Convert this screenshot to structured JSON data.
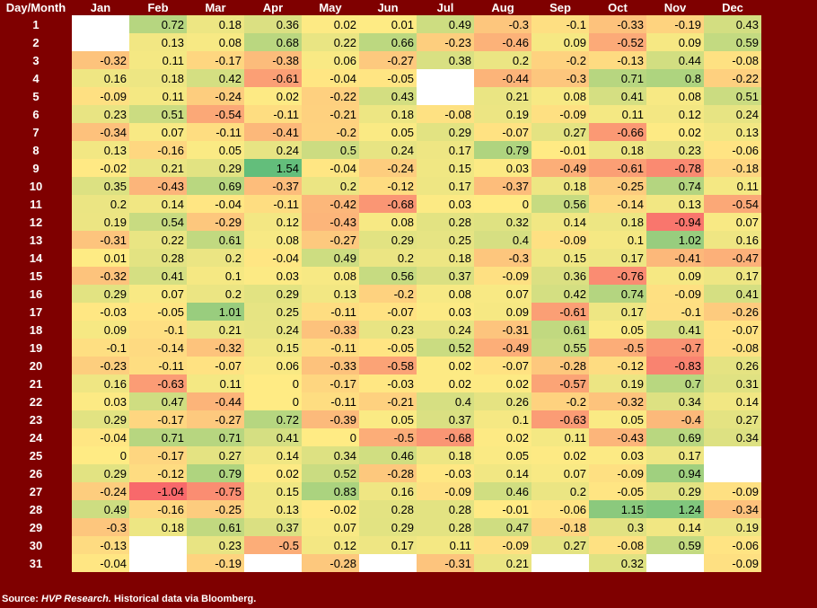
{
  "chart_data": {
    "type": "heatmap",
    "corner_label": "Day/Month",
    "columns": [
      "Jan",
      "Feb",
      "Mar",
      "Apr",
      "May",
      "Jun",
      "Jul",
      "Aug",
      "Sep",
      "Oct",
      "Nov",
      "Dec"
    ],
    "rows": [
      "1",
      "2",
      "3",
      "4",
      "5",
      "6",
      "7",
      "8",
      "9",
      "10",
      "11",
      "12",
      "13",
      "14",
      "15",
      "16",
      "17",
      "18",
      "19",
      "20",
      "21",
      "22",
      "23",
      "24",
      "25",
      "26",
      "27",
      "28",
      "29",
      "30",
      "31"
    ],
    "values": [
      [
        null,
        0.72,
        0.18,
        0.36,
        0.02,
        0.01,
        0.49,
        -0.3,
        -0.1,
        -0.33,
        -0.19,
        0.43
      ],
      [
        null,
        0.13,
        0.08,
        0.68,
        0.22,
        0.66,
        -0.23,
        -0.46,
        0.09,
        -0.52,
        0.09,
        0.59
      ],
      [
        -0.32,
        0.11,
        -0.17,
        -0.38,
        0.06,
        -0.27,
        0.38,
        0.2,
        -0.2,
        -0.13,
        0.44,
        -0.08
      ],
      [
        0.16,
        0.18,
        0.42,
        -0.61,
        -0.04,
        -0.05,
        null,
        -0.44,
        -0.3,
        0.71,
        0.8,
        -0.22
      ],
      [
        -0.09,
        0.11,
        -0.24,
        0.02,
        -0.22,
        0.43,
        null,
        0.21,
        0.08,
        0.41,
        0.08,
        0.51
      ],
      [
        0.23,
        0.51,
        -0.54,
        -0.11,
        -0.21,
        0.18,
        -0.08,
        0.19,
        -0.09,
        0.11,
        0.12,
        0.24
      ],
      [
        -0.34,
        0.07,
        -0.11,
        -0.41,
        -0.2,
        0.05,
        0.29,
        -0.07,
        0.27,
        -0.66,
        0.02,
        0.13
      ],
      [
        0.13,
        -0.16,
        0.05,
        0.24,
        0.5,
        0.24,
        0.17,
        0.79,
        -0.01,
        0.18,
        0.23,
        -0.06
      ],
      [
        -0.02,
        0.21,
        0.29,
        1.54,
        -0.04,
        -0.24,
        0.15,
        0.03,
        -0.49,
        -0.61,
        -0.78,
        -0.18
      ],
      [
        0.35,
        -0.43,
        0.69,
        -0.37,
        0.2,
        -0.12,
        0.17,
        -0.37,
        0.18,
        -0.25,
        0.74,
        0.11
      ],
      [
        0.2,
        0.14,
        -0.04,
        -0.11,
        -0.42,
        -0.68,
        0.03,
        0,
        0.56,
        -0.14,
        0.13,
        -0.54
      ],
      [
        0.19,
        0.54,
        -0.29,
        0.12,
        -0.43,
        0.08,
        0.28,
        0.32,
        0.14,
        0.18,
        -0.94,
        0.07
      ],
      [
        -0.31,
        0.22,
        0.61,
        0.08,
        -0.27,
        0.29,
        0.25,
        0.4,
        -0.09,
        0.1,
        1.02,
        0.16
      ],
      [
        0.01,
        0.28,
        0.2,
        -0.04,
        0.49,
        0.2,
        0.18,
        -0.3,
        0.15,
        0.17,
        -0.41,
        -0.47
      ],
      [
        -0.32,
        0.41,
        0.1,
        0.03,
        0.08,
        0.56,
        0.37,
        -0.09,
        0.36,
        -0.76,
        0.09,
        0.17
      ],
      [
        0.29,
        0.07,
        0.2,
        0.29,
        0.13,
        -0.2,
        0.08,
        0.07,
        0.42,
        0.74,
        -0.09,
        0.41
      ],
      [
        -0.03,
        -0.05,
        1.01,
        0.25,
        -0.11,
        -0.07,
        0.03,
        0.09,
        -0.61,
        0.17,
        -0.1,
        -0.26
      ],
      [
        0.09,
        -0.1,
        0.21,
        0.24,
        -0.33,
        0.23,
        0.24,
        -0.31,
        0.61,
        0.05,
        0.41,
        -0.07
      ],
      [
        -0.1,
        -0.14,
        -0.32,
        0.15,
        -0.11,
        -0.05,
        0.52,
        -0.49,
        0.55,
        -0.5,
        -0.7,
        -0.08
      ],
      [
        -0.23,
        -0.11,
        -0.07,
        0.06,
        -0.33,
        -0.58,
        0.02,
        -0.07,
        -0.28,
        -0.12,
        -0.83,
        0.26
      ],
      [
        0.16,
        -0.63,
        0.11,
        0,
        -0.17,
        -0.03,
        0.02,
        0.02,
        -0.57,
        0.19,
        0.7,
        0.31
      ],
      [
        0.03,
        0.47,
        -0.44,
        0,
        -0.11,
        -0.21,
        0.4,
        0.26,
        -0.2,
        -0.32,
        0.34,
        0.14
      ],
      [
        0.29,
        -0.17,
        -0.27,
        0.72,
        -0.39,
        0.05,
        0.37,
        0.1,
        -0.63,
        0.05,
        -0.4,
        0.27
      ],
      [
        -0.04,
        0.71,
        0.71,
        0.41,
        0,
        -0.5,
        -0.68,
        0.02,
        0.11,
        -0.43,
        0.69,
        0.34
      ],
      [
        0,
        -0.17,
        0.27,
        0.14,
        0.34,
        0.46,
        0.18,
        0.05,
        0.02,
        0.03,
        0.17,
        null
      ],
      [
        0.29,
        -0.12,
        0.79,
        0.02,
        0.52,
        -0.28,
        -0.03,
        0.14,
        0.07,
        -0.09,
        0.94,
        null
      ],
      [
        -0.24,
        -1.04,
        -0.75,
        0.15,
        0.83,
        0.16,
        -0.09,
        0.46,
        0.2,
        -0.05,
        0.29,
        -0.09
      ],
      [
        0.49,
        -0.16,
        -0.25,
        0.13,
        -0.02,
        0.28,
        0.28,
        -0.01,
        -0.06,
        1.15,
        1.24,
        -0.34
      ],
      [
        -0.3,
        0.18,
        0.61,
        0.37,
        0.07,
        0.29,
        0.28,
        0.47,
        -0.18,
        0.3,
        0.14,
        0.19
      ],
      [
        -0.13,
        null,
        0.23,
        -0.5,
        0.12,
        0.17,
        0.11,
        -0.09,
        0.27,
        -0.08,
        0.59,
        -0.06
      ],
      [
        -0.04,
        null,
        -0.19,
        null,
        -0.28,
        null,
        -0.31,
        0.21,
        null,
        0.32,
        null,
        -0.09
      ]
    ],
    "colors": {
      "negative_max": "#f8696b",
      "mid": "#ffeb84",
      "positive_max": "#63be7b",
      "blank": "#ffffff",
      "background": "#7f0000"
    }
  },
  "footer": {
    "source_label": "Source:",
    "source_name": "HVP Research.",
    "source_detail": "Historical data via Bloomberg."
  }
}
